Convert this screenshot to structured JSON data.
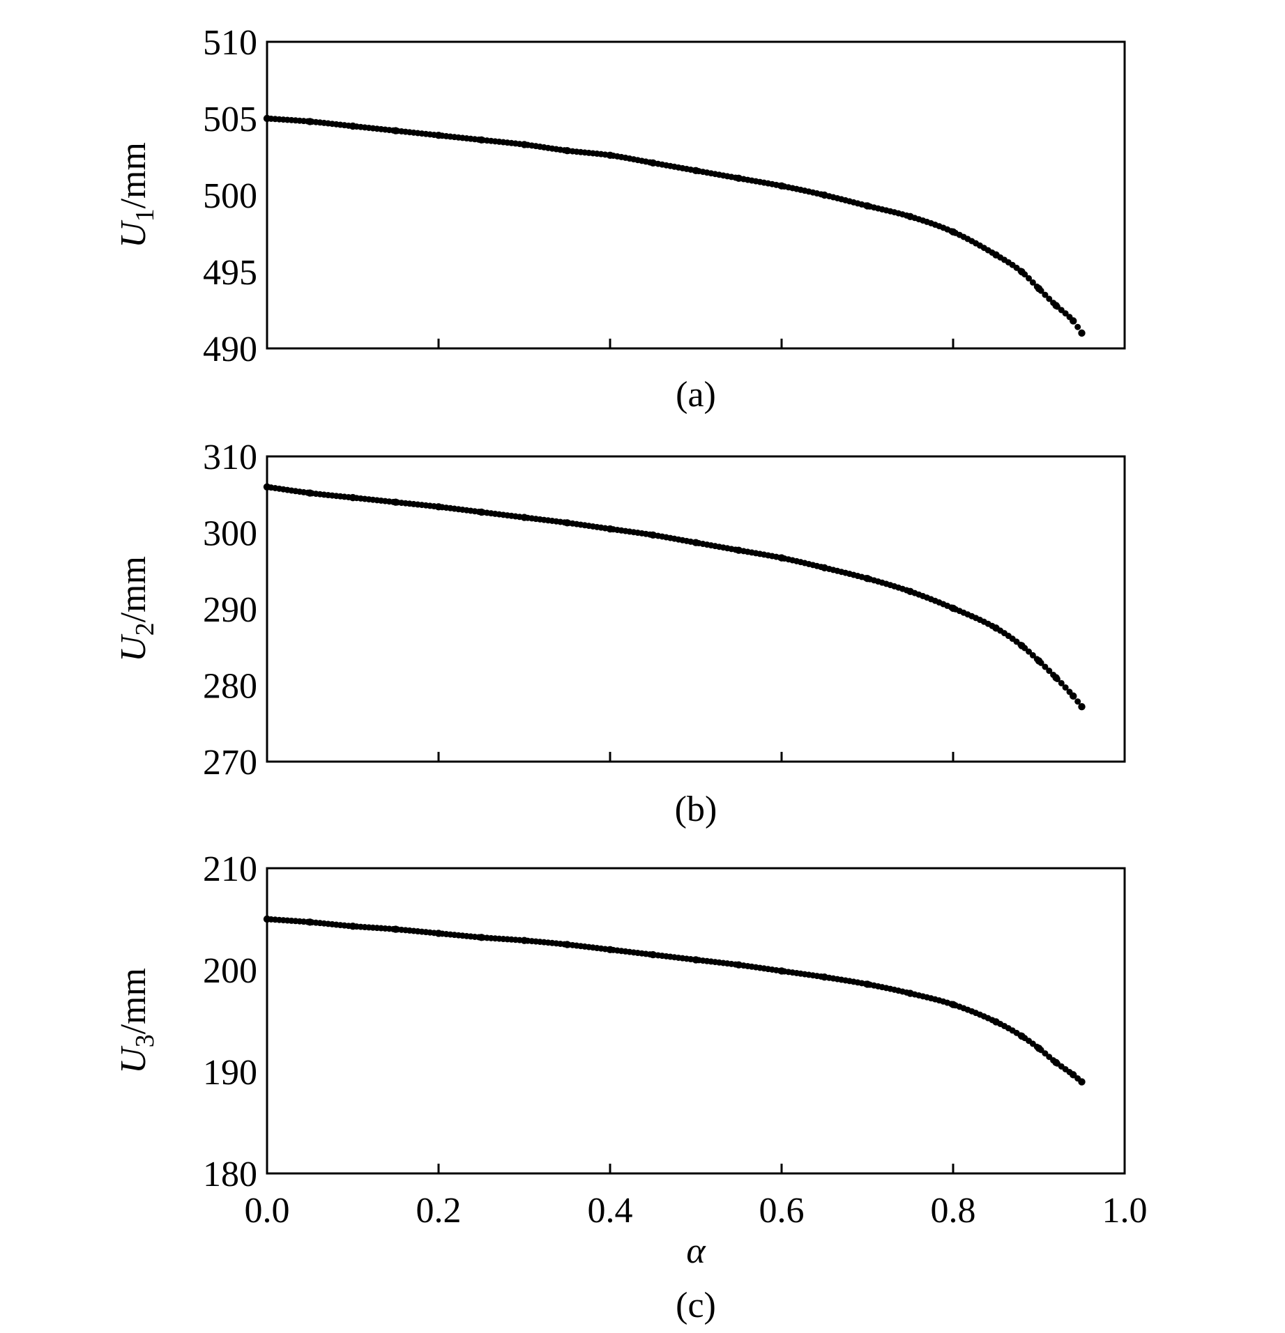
{
  "chart_data": [
    {
      "type": "scatter",
      "panel_label": "(a)",
      "ylabel": "U",
      "ylabel_subscript": "1",
      "ylabel_unit": "/mm",
      "xlim": [
        0.0,
        1.0
      ],
      "ylim": [
        490,
        510
      ],
      "xticks": [
        0.0,
        0.2,
        0.4,
        0.6,
        0.8,
        1.0
      ],
      "yticks": [
        490,
        495,
        500,
        505,
        510
      ],
      "ytick_labels": [
        "490",
        "495",
        "500",
        "505",
        "510"
      ],
      "marker_color": "#000000",
      "x": [
        0.0,
        0.05,
        0.1,
        0.15,
        0.2,
        0.25,
        0.3,
        0.35,
        0.4,
        0.45,
        0.5,
        0.55,
        0.6,
        0.65,
        0.7,
        0.75,
        0.8,
        0.85,
        0.88,
        0.9,
        0.92,
        0.94,
        0.95
      ],
      "y": [
        505.0,
        504.8,
        504.5,
        504.2,
        503.9,
        503.6,
        503.3,
        502.9,
        502.6,
        502.1,
        501.6,
        501.1,
        500.6,
        500.0,
        499.3,
        498.6,
        497.6,
        496.1,
        495.0,
        493.9,
        492.8,
        491.8,
        491.0
      ]
    },
    {
      "type": "scatter",
      "panel_label": "(b)",
      "ylabel": "U",
      "ylabel_subscript": "2",
      "ylabel_unit": "/mm",
      "xlim": [
        0.0,
        1.0
      ],
      "ylim": [
        270,
        310
      ],
      "xticks": [
        0.0,
        0.2,
        0.4,
        0.6,
        0.8,
        1.0
      ],
      "yticks": [
        270,
        280,
        290,
        300,
        310
      ],
      "ytick_labels": [
        "270",
        "280",
        "290",
        "300",
        "310"
      ],
      "marker_color": "#000000",
      "x": [
        0.0,
        0.05,
        0.1,
        0.15,
        0.2,
        0.25,
        0.3,
        0.35,
        0.4,
        0.45,
        0.5,
        0.55,
        0.6,
        0.65,
        0.7,
        0.75,
        0.8,
        0.85,
        0.88,
        0.9,
        0.92,
        0.94,
        0.95
      ],
      "y": [
        306.0,
        305.2,
        304.6,
        304.0,
        303.4,
        302.7,
        302.0,
        301.3,
        300.5,
        299.7,
        298.7,
        297.7,
        296.7,
        295.4,
        294.0,
        292.3,
        290.1,
        287.5,
        285.2,
        283.2,
        281.0,
        278.6,
        277.2
      ]
    },
    {
      "type": "scatter",
      "panel_label": "(c)",
      "ylabel": "U",
      "ylabel_subscript": "3",
      "ylabel_unit": "/mm",
      "xlabel": "α",
      "xlim": [
        0.0,
        1.0
      ],
      "ylim": [
        180,
        210
      ],
      "xticks": [
        0.0,
        0.2,
        0.4,
        0.6,
        0.8,
        1.0
      ],
      "xtick_labels": [
        "0.0",
        "0.2",
        "0.4",
        "0.6",
        "0.8",
        "1.0"
      ],
      "yticks": [
        180,
        190,
        200,
        210
      ],
      "ytick_labels": [
        "180",
        "190",
        "200",
        "210"
      ],
      "marker_color": "#000000",
      "x": [
        0.0,
        0.05,
        0.1,
        0.15,
        0.2,
        0.25,
        0.3,
        0.35,
        0.4,
        0.45,
        0.5,
        0.55,
        0.6,
        0.65,
        0.7,
        0.75,
        0.8,
        0.85,
        0.88,
        0.9,
        0.92,
        0.94,
        0.95
      ],
      "y": [
        205.0,
        204.7,
        204.3,
        204.0,
        203.6,
        203.2,
        202.9,
        202.5,
        202.0,
        201.5,
        201.0,
        200.5,
        199.9,
        199.3,
        198.6,
        197.7,
        196.6,
        194.9,
        193.5,
        192.3,
        190.9,
        189.7,
        189.0
      ]
    }
  ]
}
